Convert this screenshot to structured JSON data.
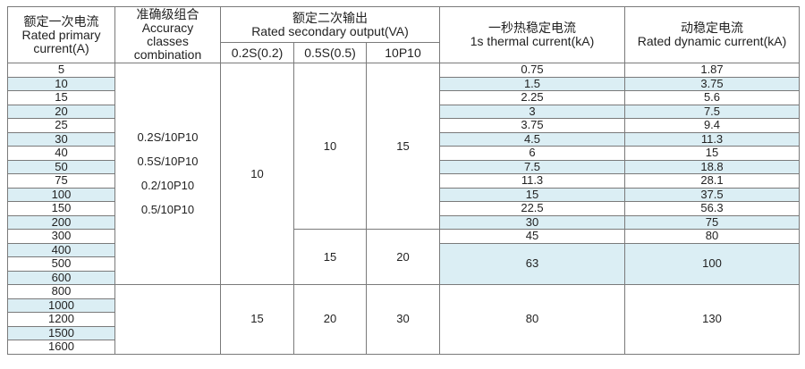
{
  "headers": {
    "rated_primary": [
      "额定一次电流",
      "Rated primary",
      "current(A)"
    ],
    "accuracy": [
      "准确级组合",
      "Accuracy",
      "classes",
      "combination"
    ],
    "secondary_output": [
      "额定二次输出",
      "Rated secondary output(VA)"
    ],
    "sub_02s": "0.2S(0.2)",
    "sub_05s": "0.5S(0.5)",
    "sub_10p10": "10P10",
    "thermal": [
      "一秒热稳定电流",
      "1s thermal current(kA)"
    ],
    "dynamic": [
      "动稳定电流",
      "Rated dynamic current(kA)"
    ]
  },
  "combinations": [
    "0.2S/10P10",
    "0.5S/10P10",
    "0.2/10P10",
    "0.5/10P10"
  ],
  "groups": {
    "g1_02s": "10",
    "g1_05s": "10",
    "g1_10p10": "15",
    "g2_05s": "15",
    "g2_10p10": "20",
    "g3_02s": "15",
    "g3_05s": "20",
    "g3_10p10": "30"
  },
  "rows": [
    {
      "current": "5",
      "thermal": "0.75",
      "dynamic": "1.87"
    },
    {
      "current": "10",
      "thermal": "1.5",
      "dynamic": "3.75"
    },
    {
      "current": "15",
      "thermal": "2.25",
      "dynamic": "5.6"
    },
    {
      "current": "20",
      "thermal": "3",
      "dynamic": "7.5"
    },
    {
      "current": "25",
      "thermal": "3.75",
      "dynamic": "9.4"
    },
    {
      "current": "30",
      "thermal": "4.5",
      "dynamic": "11.3"
    },
    {
      "current": "40",
      "thermal": "6",
      "dynamic": "15"
    },
    {
      "current": "50",
      "thermal": "7.5",
      "dynamic": "18.8"
    },
    {
      "current": "75",
      "thermal": "11.3",
      "dynamic": "28.1"
    },
    {
      "current": "100",
      "thermal": "15",
      "dynamic": "37.5"
    },
    {
      "current": "150",
      "thermal": "22.5",
      "dynamic": "56.3"
    },
    {
      "current": "200",
      "thermal": "30",
      "dynamic": "75"
    },
    {
      "current": "300",
      "thermal": "45",
      "dynamic": "80"
    },
    {
      "current": "400"
    },
    {
      "current": "500"
    },
    {
      "current": "600"
    },
    {
      "current": "800"
    },
    {
      "current": "1000"
    },
    {
      "current": "1200"
    },
    {
      "current": "1500"
    },
    {
      "current": "1600"
    }
  ],
  "merged_thermal": {
    "g400": "63",
    "g800": "80"
  },
  "merged_dynamic": {
    "g400": "100",
    "g800": "130"
  },
  "colors": {
    "shade": "#dbeef4",
    "border": "#7a7a7a"
  }
}
